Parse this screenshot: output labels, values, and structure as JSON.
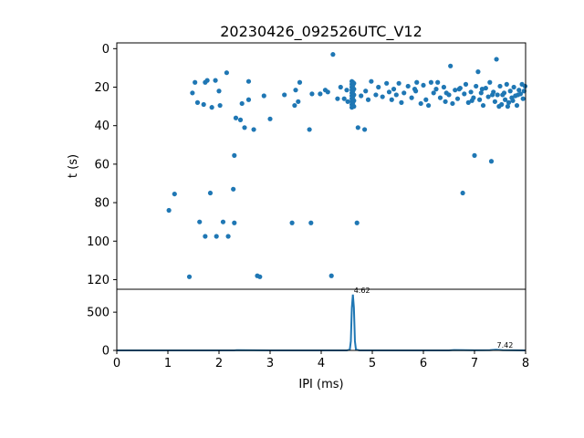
{
  "chart_data": [
    {
      "type": "scatter",
      "title": "20230426_092526UTC_V12",
      "xlabel": "",
      "ylabel": "t (s)",
      "xlim": [
        0,
        8
      ],
      "ylim": [
        125,
        -3
      ],
      "y_inverted": true,
      "x_ticks": [],
      "y_ticks": [
        0,
        20,
        40,
        60,
        80,
        100,
        120
      ],
      "y_tick_labels": [
        "0",
        "20",
        "40",
        "60",
        "80",
        "100",
        "120"
      ],
      "marker_color": "#1f77b4",
      "points": [
        [
          1.02,
          84
        ],
        [
          1.13,
          75.5
        ],
        [
          1.42,
          118.5
        ],
        [
          1.48,
          23
        ],
        [
          1.53,
          17.5
        ],
        [
          1.58,
          28
        ],
        [
          1.62,
          90
        ],
        [
          1.7,
          29
        ],
        [
          1.73,
          97.5
        ],
        [
          1.73,
          17.5
        ],
        [
          1.77,
          16.5
        ],
        [
          1.83,
          75
        ],
        [
          1.86,
          30.5
        ],
        [
          1.93,
          16.5
        ],
        [
          1.95,
          97.5
        ],
        [
          2.0,
          22
        ],
        [
          2.02,
          29.5
        ],
        [
          2.08,
          90
        ],
        [
          2.15,
          12.5
        ],
        [
          2.18,
          97.5
        ],
        [
          2.28,
          73
        ],
        [
          2.3,
          55.5
        ],
        [
          2.3,
          90.5
        ],
        [
          2.33,
          36
        ],
        [
          2.42,
          37
        ],
        [
          2.45,
          28.5
        ],
        [
          2.5,
          41
        ],
        [
          2.58,
          17
        ],
        [
          2.58,
          26.5
        ],
        [
          2.68,
          42
        ],
        [
          2.75,
          118
        ],
        [
          2.8,
          118.5
        ],
        [
          2.88,
          24.5
        ],
        [
          3.0,
          36.5
        ],
        [
          3.28,
          24
        ],
        [
          3.43,
          90.5
        ],
        [
          3.48,
          29.5
        ],
        [
          3.5,
          21.5
        ],
        [
          3.55,
          27.5
        ],
        [
          3.58,
          17.5
        ],
        [
          3.77,
          42
        ],
        [
          3.8,
          90.5
        ],
        [
          3.82,
          23.5
        ],
        [
          3.98,
          23.5
        ],
        [
          4.08,
          21.5
        ],
        [
          4.13,
          22.5
        ],
        [
          4.2,
          118
        ],
        [
          4.23,
          3
        ],
        [
          4.32,
          26
        ],
        [
          4.38,
          20
        ],
        [
          4.45,
          26
        ],
        [
          4.5,
          21.5
        ],
        [
          4.52,
          27.5
        ],
        [
          4.6,
          17
        ],
        [
          4.6,
          18.5
        ],
        [
          4.6,
          20
        ],
        [
          4.6,
          21.5
        ],
        [
          4.6,
          23
        ],
        [
          4.6,
          24.5
        ],
        [
          4.6,
          26
        ],
        [
          4.6,
          27.5
        ],
        [
          4.6,
          29
        ],
        [
          4.6,
          30.5
        ],
        [
          4.62,
          17.5
        ],
        [
          4.62,
          19
        ],
        [
          4.62,
          20.5
        ],
        [
          4.62,
          22
        ],
        [
          4.62,
          23.5
        ],
        [
          4.62,
          25
        ],
        [
          4.62,
          26.5
        ],
        [
          4.62,
          28
        ],
        [
          4.62,
          29.5
        ],
        [
          4.64,
          18
        ],
        [
          4.64,
          21
        ],
        [
          4.64,
          24
        ],
        [
          4.64,
          27
        ],
        [
          4.64,
          30
        ],
        [
          4.7,
          90.5
        ],
        [
          4.72,
          41
        ],
        [
          4.78,
          24.5
        ],
        [
          4.85,
          42
        ],
        [
          4.87,
          22
        ],
        [
          4.92,
          26.5
        ],
        [
          4.98,
          17
        ],
        [
          5.07,
          24
        ],
        [
          5.12,
          20
        ],
        [
          5.2,
          25
        ],
        [
          5.28,
          18
        ],
        [
          5.33,
          22.5
        ],
        [
          5.38,
          26.5
        ],
        [
          5.42,
          21
        ],
        [
          5.47,
          24
        ],
        [
          5.52,
          18
        ],
        [
          5.57,
          28
        ],
        [
          5.62,
          23
        ],
        [
          5.7,
          19.5
        ],
        [
          5.77,
          25.5
        ],
        [
          5.83,
          21
        ],
        [
          5.87,
          17.5
        ],
        [
          5.95,
          28.5
        ],
        [
          6.0,
          19
        ],
        [
          6.05,
          26.5
        ],
        [
          6.1,
          29.5
        ],
        [
          6.15,
          17.5
        ],
        [
          6.2,
          23
        ],
        [
          6.25,
          21
        ],
        [
          6.28,
          17.5
        ],
        [
          6.33,
          25.5
        ],
        [
          6.4,
          20
        ],
        [
          6.43,
          27.5
        ],
        [
          6.5,
          24
        ],
        [
          6.53,
          9
        ],
        [
          6.57,
          28.5
        ],
        [
          6.62,
          21.5
        ],
        [
          6.67,
          26
        ],
        [
          6.72,
          20.5
        ],
        [
          6.77,
          75
        ],
        [
          6.8,
          23.5
        ],
        [
          6.83,
          18.5
        ],
        [
          6.88,
          28
        ],
        [
          6.93,
          22.5
        ],
        [
          6.98,
          25.5
        ],
        [
          7.0,
          55.5
        ],
        [
          7.03,
          19.5
        ],
        [
          7.07,
          12
        ],
        [
          7.1,
          26.5
        ],
        [
          7.13,
          23
        ],
        [
          7.17,
          29.5
        ],
        [
          7.22,
          20.5
        ],
        [
          7.27,
          25
        ],
        [
          7.3,
          17.5
        ],
        [
          7.33,
          58.5
        ],
        [
          7.37,
          22.5
        ],
        [
          7.4,
          27.5
        ],
        [
          7.43,
          5.5
        ],
        [
          7.45,
          24
        ],
        [
          7.5,
          19.5
        ],
        [
          7.53,
          29
        ],
        [
          7.58,
          23
        ],
        [
          7.6,
          26.5
        ],
        [
          7.63,
          18.5
        ],
        [
          7.67,
          28
        ],
        [
          7.7,
          22
        ],
        [
          7.73,
          25.5
        ],
        [
          7.77,
          20
        ],
        [
          7.8,
          24.5
        ],
        [
          7.83,
          29.5
        ],
        [
          7.87,
          21.5
        ],
        [
          7.9,
          23.5
        ],
        [
          7.93,
          18.5
        ],
        [
          7.97,
          22
        ],
        [
          7.99,
          19.5
        ],
        [
          5.85,
          22
        ],
        [
          6.7,
          21
        ],
        [
          7.15,
          21
        ],
        [
          7.55,
          24
        ],
        [
          7.75,
          27
        ],
        [
          7.95,
          26
        ],
        [
          7.48,
          30
        ],
        [
          7.65,
          30
        ],
        [
          7.35,
          24
        ],
        [
          7.85,
          24
        ],
        [
          6.95,
          27
        ],
        [
          6.45,
          23
        ]
      ]
    },
    {
      "type": "line",
      "title": "",
      "xlabel": "IPI (ms)",
      "ylabel": "",
      "xlim": [
        0,
        8
      ],
      "ylim": [
        0,
        800
      ],
      "x_ticks": [
        0,
        1,
        2,
        3,
        4,
        5,
        6,
        7,
        8
      ],
      "x_tick_labels": [
        "0",
        "1",
        "2",
        "3",
        "4",
        "5",
        "6",
        "7",
        "8"
      ],
      "y_ticks": [
        0,
        500
      ],
      "y_tick_labels": [
        "0",
        "500"
      ],
      "line_color": "#1f77b4",
      "series": [
        {
          "x": [
            0,
            1,
            2,
            2.3,
            2.35,
            3,
            4,
            4.5,
            4.56,
            4.58,
            4.6,
            4.62,
            4.64,
            4.66,
            4.68,
            4.75,
            5,
            6,
            6.5,
            6.6,
            7,
            7.3,
            7.42,
            7.55,
            8
          ],
          "y": [
            0,
            0,
            0,
            0,
            3,
            0,
            0,
            0,
            10,
            120,
            560,
            730,
            560,
            120,
            10,
            0,
            0,
            0,
            0,
            4,
            2,
            3,
            9,
            3,
            0
          ]
        }
      ],
      "annotations": [
        {
          "x": 4.62,
          "y": 730,
          "text": "4.62"
        },
        {
          "x": 7.42,
          "y": 9,
          "text": "7.42"
        }
      ]
    }
  ]
}
